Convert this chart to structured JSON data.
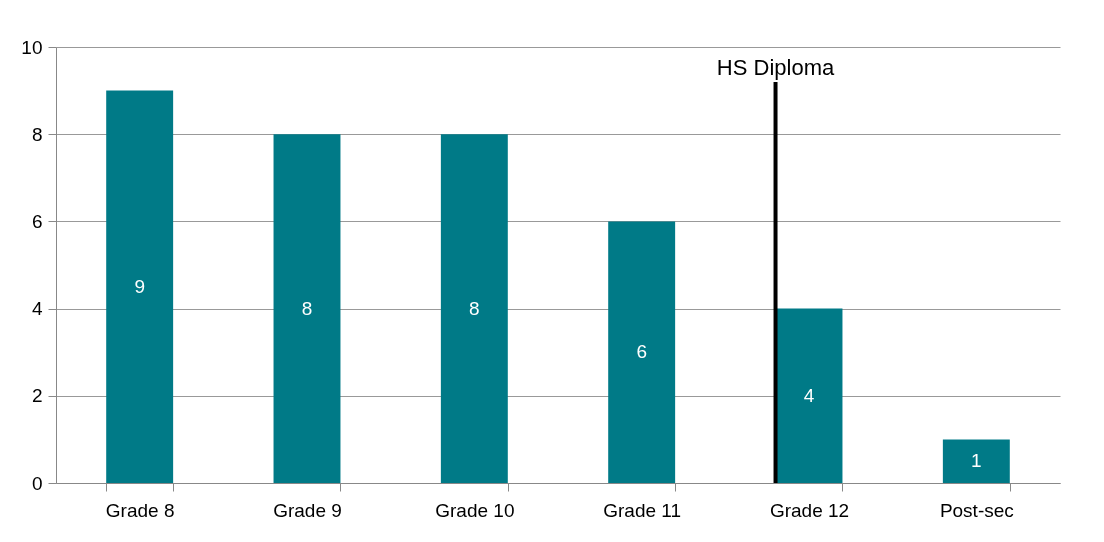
{
  "chart_data": {
    "type": "bar",
    "categories": [
      "Grade 8",
      "Grade 9",
      "Grade 10",
      "Grade 11",
      "Grade 12",
      "Post-sec"
    ],
    "values": [
      9,
      8,
      8,
      6,
      4,
      1
    ],
    "color": "#007a87",
    "ylim": [
      0,
      10
    ],
    "yticks": [
      0,
      2,
      4,
      6,
      8,
      10
    ],
    "grid": "y",
    "data_labels": true,
    "ref_lines": [
      {
        "axis": "x",
        "value": "Grade 12",
        "label": "HS Diploma",
        "color": "#000000"
      }
    ]
  }
}
